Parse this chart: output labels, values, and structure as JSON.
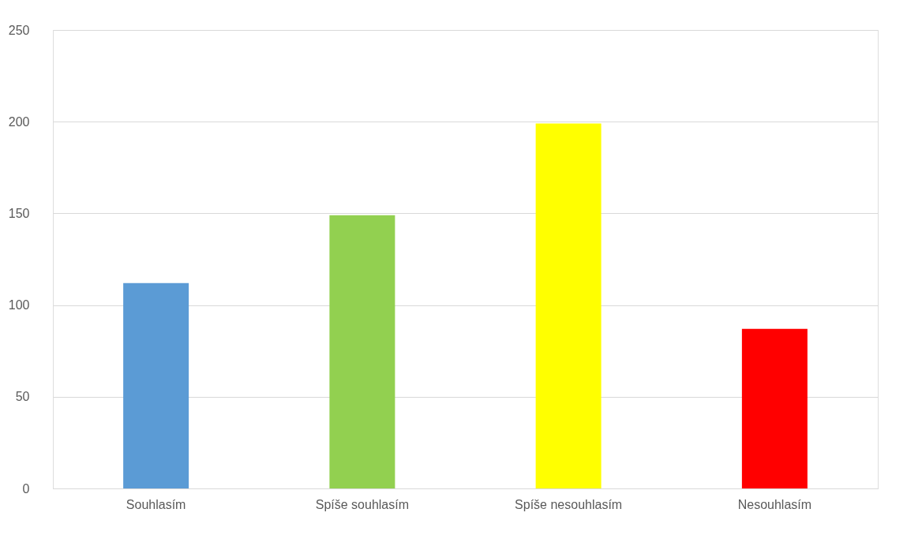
{
  "chart_data": {
    "type": "bar",
    "categories": [
      "Souhlasím",
      "Spíše souhlasím",
      "Spíše nesouhlasím",
      "Nesouhlasím"
    ],
    "values": [
      112,
      149,
      199,
      87
    ],
    "colors": [
      "#5b9bd5",
      "#92d050",
      "#ffff00",
      "#ff0000"
    ],
    "ylim": [
      0,
      250
    ],
    "yticks": [
      0,
      50,
      100,
      150,
      200,
      250
    ],
    "grid": "y"
  }
}
